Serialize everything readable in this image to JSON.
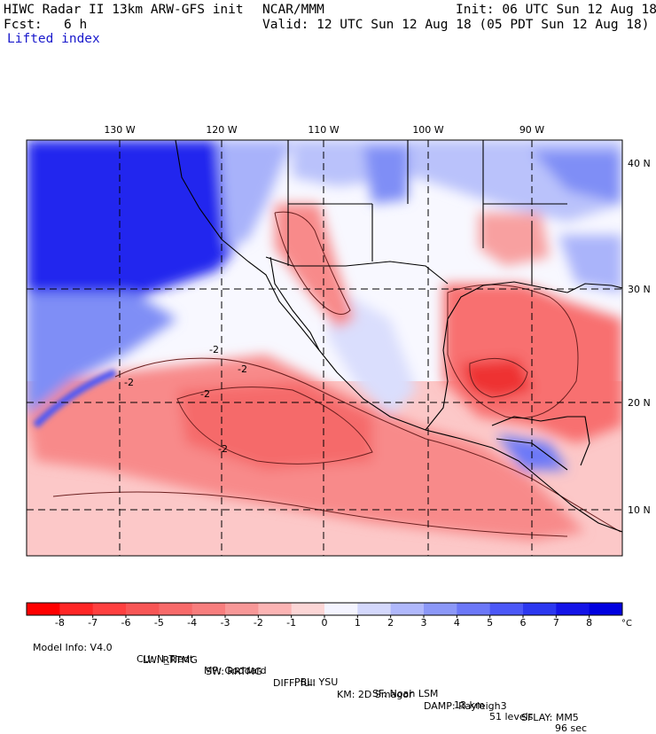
{
  "header": {
    "model_title": "HIWC Radar II 13km ARW-GFS init",
    "institution": "NCAR/MMM",
    "init_time": "Init: 06 UTC Sun 12 Aug 18",
    "forecast_label": "Fcst:",
    "forecast_hours": "6 h",
    "valid_time": "Valid: 12 UTC Sun 12 Aug 18 (05 PDT Sun 12 Aug 18)",
    "field_name": "Lifted index"
  },
  "map": {
    "longitude_labels": [
      "130 W",
      "120 W",
      "110 W",
      "100 W",
      "90 W"
    ],
    "latitude_labels": [
      "40 N",
      "30 N",
      "20 N",
      "10 N"
    ],
    "contour_labels": [
      "-2",
      "-2",
      "-2",
      "-2",
      "-2"
    ]
  },
  "colorbar": {
    "ticks": [
      "-8",
      "-7",
      "-6",
      "-5",
      "-4",
      "-3",
      "-2",
      "-1",
      "0",
      "1",
      "2",
      "3",
      "4",
      "5",
      "6",
      "7",
      "8"
    ],
    "unit": "°C",
    "colors": [
      "#ff0000",
      "#ff2626",
      "#ff4040",
      "#f85656",
      "#f86a6a",
      "#f87e7e",
      "#f89898",
      "#fcb4b4",
      "#fcd6d6",
      "#f4f4ff",
      "#d4d8fc",
      "#b0b8fc",
      "#8c98f8",
      "#6c78f8",
      "#4c58f8",
      "#2c38f0",
      "#1414e8",
      "#0000e0"
    ]
  },
  "footer": {
    "line1": [
      "Model Info: V4.0",
      "CU: N_Tiedt",
      "MP: Goddard",
      "PBL: YSU",
      "SF: Noah LSM",
      "13 km",
      "51 levels",
      "96 sec"
    ],
    "line2": [
      "LW: RRTMG",
      "SW: RRTMG",
      "DIFF: full",
      "KM: 2D Smagor",
      "DAMP: Rayleigh3",
      "SFLAY: MM5"
    ]
  }
}
